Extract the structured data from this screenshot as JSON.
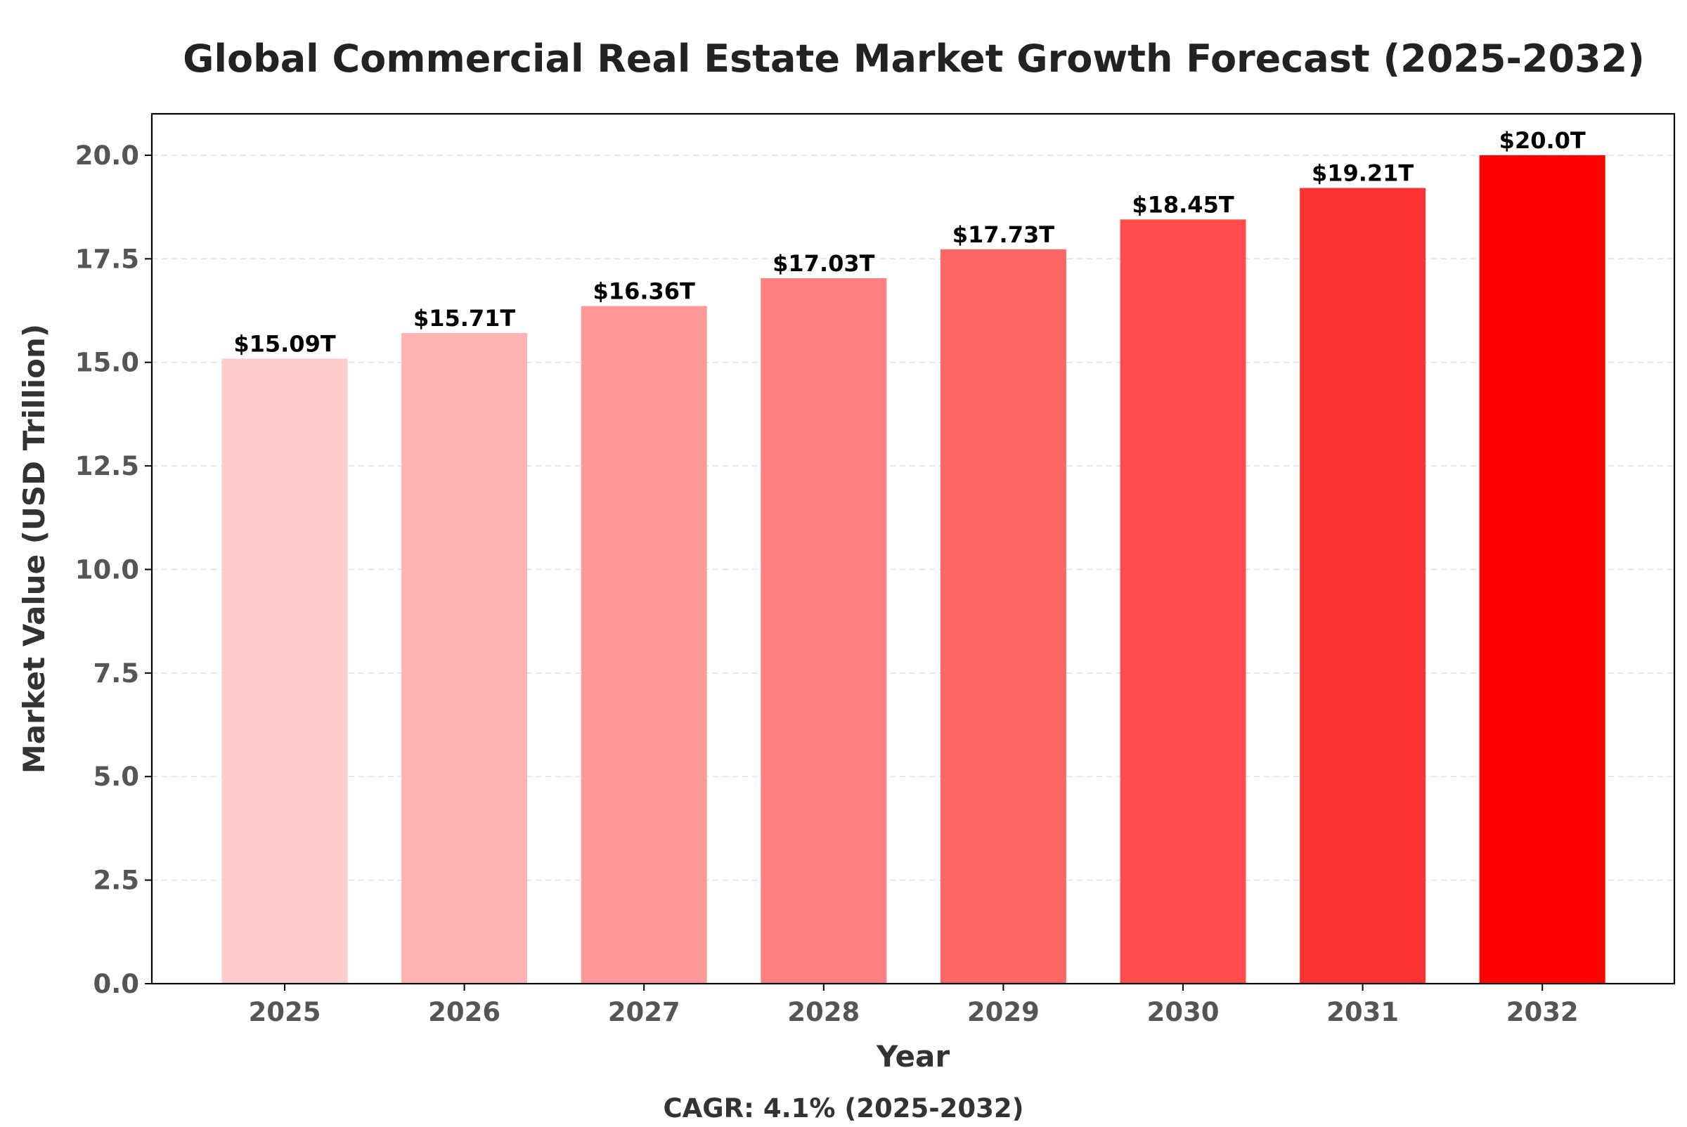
{
  "chart_data": {
    "type": "bar",
    "title": "Global Commercial Real Estate Market Growth Forecast (2025-2032)",
    "xlabel": "Year",
    "ylabel": "Market Value (USD Trillion)",
    "categories": [
      "2025",
      "2026",
      "2027",
      "2028",
      "2029",
      "2030",
      "2031",
      "2032"
    ],
    "values": [
      15.09,
      15.71,
      16.36,
      17.03,
      17.73,
      18.45,
      19.21,
      20.0
    ],
    "data_labels": [
      "$15.09T",
      "$15.71T",
      "$16.36T",
      "$17.03T",
      "$17.73T",
      "$18.45T",
      "$19.21T",
      "$20.0T"
    ],
    "bar_colors": [
      "#ffcccc",
      "#ffb3b3",
      "#ff9999",
      "#ff8080",
      "#ff6666",
      "#ff4d4d",
      "#ff3333",
      "#ff0000"
    ],
    "ylim": [
      0,
      21
    ],
    "yticks": [
      0.0,
      2.5,
      5.0,
      7.5,
      10.0,
      12.5,
      15.0,
      17.5,
      20.0
    ],
    "ytick_labels": [
      "0.0",
      "2.5",
      "5.0",
      "7.5",
      "10.0",
      "12.5",
      "15.0",
      "17.5",
      "20.0"
    ],
    "grid": "horizontal-dashed",
    "footnote": "CAGR: 4.1% (2025-2032)"
  }
}
